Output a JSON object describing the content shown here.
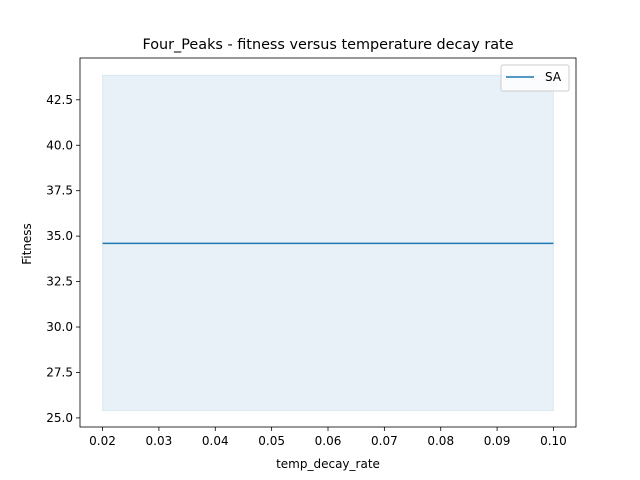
{
  "chart_data": {
    "type": "line",
    "title": "Four_Peaks - fitness versus temperature decay rate",
    "xlabel": "temp_decay_rate",
    "ylabel": "Fitness",
    "x": [
      0.02,
      0.03,
      0.04,
      0.05,
      0.06,
      0.07,
      0.08,
      0.09,
      0.1
    ],
    "series": [
      {
        "name": "SA",
        "values": [
          34.6,
          34.6,
          34.6,
          34.6,
          34.6,
          34.6,
          34.6,
          34.6,
          34.6
        ],
        "band_lower": [
          25.4,
          25.4,
          25.4,
          25.4,
          25.4,
          25.4,
          25.4,
          25.4,
          25.4
        ],
        "band_upper": [
          43.85,
          43.85,
          43.85,
          43.85,
          43.85,
          43.85,
          43.85,
          43.85,
          43.85
        ],
        "color": "#1f77b4"
      }
    ],
    "xlim": [
      0.016,
      0.104
    ],
    "ylim": [
      24.5,
      44.8
    ],
    "xticks": [
      "0.02",
      "0.03",
      "0.04",
      "0.05",
      "0.06",
      "0.07",
      "0.08",
      "0.09",
      "0.10"
    ],
    "xtick_values": [
      0.02,
      0.03,
      0.04,
      0.05,
      0.06,
      0.07,
      0.08,
      0.09,
      0.1
    ],
    "yticks": [
      "25.0",
      "27.5",
      "30.0",
      "32.5",
      "35.0",
      "37.5",
      "40.0",
      "42.5"
    ],
    "ytick_values": [
      25.0,
      27.5,
      30.0,
      32.5,
      35.0,
      37.5,
      40.0,
      42.5
    ],
    "grid": false,
    "legend_position": "top-right",
    "band_color": "#1f77b4"
  }
}
